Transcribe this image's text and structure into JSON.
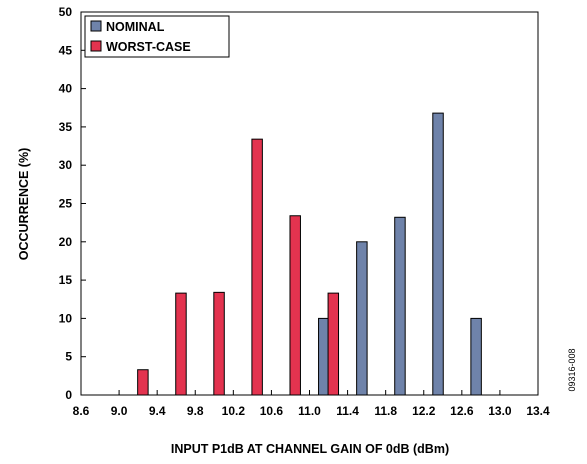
{
  "chart_data": {
    "type": "bar",
    "xlabel": "INPUT P1dB AT CHANNEL GAIN OF 0dB (dBm)",
    "ylabel": "OCCURRENCE (%)",
    "xlim": [
      8.6,
      13.4
    ],
    "ylim": [
      0,
      50
    ],
    "x_ticks": [
      "8.6",
      "9.0",
      "9.4",
      "9.8",
      "10.2",
      "10.6",
      "11.0",
      "11.4",
      "11.8",
      "12.2",
      "12.6",
      "13.0",
      "13.4"
    ],
    "y_ticks": [
      "0",
      "5",
      "10",
      "15",
      "20",
      "25",
      "30",
      "35",
      "40",
      "45",
      "50"
    ],
    "grid": false,
    "legend_position": "top-left",
    "series": [
      {
        "name": "NOMINAL",
        "color": "#6f83aa",
        "points": [
          {
            "x": 11.15,
            "y": 10
          },
          {
            "x": 11.55,
            "y": 20
          },
          {
            "x": 11.95,
            "y": 23.2
          },
          {
            "x": 12.35,
            "y": 36.8
          },
          {
            "x": 12.75,
            "y": 10
          }
        ]
      },
      {
        "name": "WORST-CASE",
        "color": "#e3334f",
        "points": [
          {
            "x": 9.25,
            "y": 3.3
          },
          {
            "x": 9.65,
            "y": 13.3
          },
          {
            "x": 10.05,
            "y": 13.4
          },
          {
            "x": 10.45,
            "y": 33.4
          },
          {
            "x": 10.85,
            "y": 23.4
          },
          {
            "x": 11.25,
            "y": 13.3
          }
        ]
      }
    ]
  },
  "figure_id": "09316-008"
}
